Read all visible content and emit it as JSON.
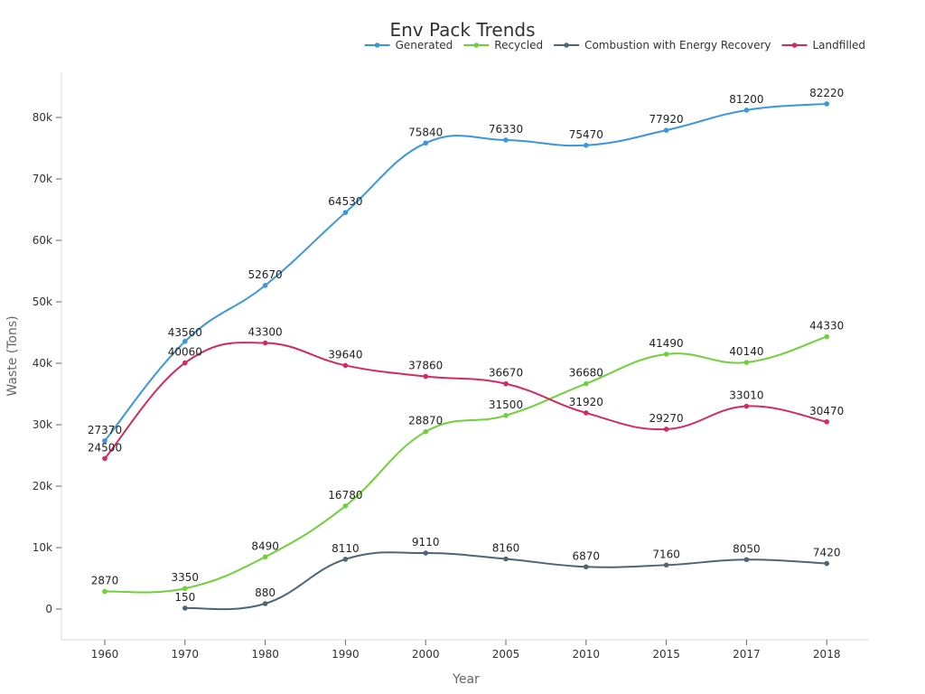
{
  "chart_data": {
    "type": "line",
    "title": "Env Pack Trends",
    "xlabel": "Year",
    "ylabel": "Waste (Tons)",
    "ylim": [
      -5000,
      88000
    ],
    "yticks": [
      0,
      10000,
      20000,
      30000,
      40000,
      50000,
      60000,
      70000,
      80000
    ],
    "ytick_labels": [
      "0",
      "10k",
      "20k",
      "30k",
      "40k",
      "50k",
      "60k",
      "70k",
      "80k"
    ],
    "categories": [
      "1960",
      "1970",
      "1980",
      "1990",
      "2000",
      "2005",
      "2010",
      "2015",
      "2017",
      "2018"
    ],
    "legend_position": "top-right",
    "series": [
      {
        "name": "Generated",
        "color": "#3a97de",
        "values": [
          27370,
          43560,
          52670,
          64530,
          75840,
          76330,
          75470,
          77920,
          81200,
          82220
        ]
      },
      {
        "name": "Recycled",
        "color": "#6fd13a",
        "values": [
          2870,
          3350,
          8490,
          16780,
          28870,
          31500,
          36680,
          41490,
          40140,
          44330
        ]
      },
      {
        "name": "Combustion with Energy Recovery",
        "color": "#4f6573",
        "values": [
          null,
          150,
          880,
          8110,
          9110,
          8160,
          6870,
          7160,
          8050,
          7420
        ]
      },
      {
        "name": "Landfilled",
        "color": "#d42a62",
        "values": [
          24500,
          40060,
          43300,
          39640,
          37860,
          36670,
          31920,
          29270,
          33010,
          30470
        ]
      }
    ]
  }
}
